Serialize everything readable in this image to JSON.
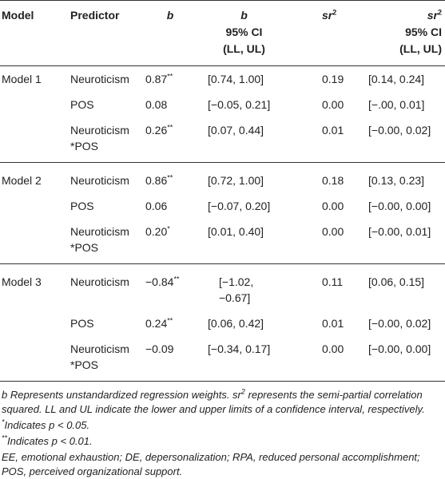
{
  "header": {
    "model": "Model",
    "predictor": "Predictor",
    "b": "b",
    "ci": "95% CI",
    "ci_bounds": "(LL, UL)",
    "sr": "sr",
    "sr_sup": "2"
  },
  "rows": [
    {
      "model": "Model 1",
      "predictor": [
        "Neuroticism"
      ],
      "b": "0.87",
      "b_sig": "**",
      "b_ci": [
        "[0.74, 1.00]"
      ],
      "sr2": "0.19",
      "sr2_ci": "[0.14, 0.24]"
    },
    {
      "predictor": [
        "POS"
      ],
      "b": "0.08",
      "b_ci": [
        "[−0.05, 0.21]"
      ],
      "sr2": "0.00",
      "sr2_ci": "[−.00, 0.01]"
    },
    {
      "predictor": [
        "Neuroticism",
        "*POS"
      ],
      "b": "0.26",
      "b_sig": "**",
      "b_ci": [
        "[0.07, 0.44]"
      ],
      "sr2": "0.01",
      "sr2_ci": "[−0.00, 0.02]"
    },
    {
      "model": "Model 2",
      "predictor": [
        "Neuroticism"
      ],
      "b": "0.86",
      "b_sig": "**",
      "b_ci": [
        "[0.72, 1.00]"
      ],
      "sr2": "0.18",
      "sr2_ci": "[0.13, 0.23]"
    },
    {
      "predictor": [
        "POS"
      ],
      "b": "0.06",
      "b_ci": [
        "[−0.07, 0.20]"
      ],
      "sr2": "0.00",
      "sr2_ci": "[−0.00, 0.00]"
    },
    {
      "predictor": [
        "Neuroticism",
        "*POS"
      ],
      "b": "0.20",
      "b_sig": "*",
      "b_ci": [
        "[0.01, 0.40]"
      ],
      "sr2": "0.00",
      "sr2_ci": "[−0.00, 0.01]"
    },
    {
      "model": "Model 3",
      "predictor": [
        "Neuroticism"
      ],
      "b": "−0.84",
      "b_sig": "**",
      "b_ci": [
        "[−1.02,",
        "−0.67]"
      ],
      "sr2": "0.11",
      "sr2_ci": "[0.06, 0.15]"
    },
    {
      "predictor": [
        "POS"
      ],
      "b": "0.24",
      "b_sig": "**",
      "b_ci": [
        "[0.06, 0.42]"
      ],
      "sr2": "0.01",
      "sr2_ci": "[−0.00, 0.02]"
    },
    {
      "predictor": [
        "Neuroticism",
        "*POS"
      ],
      "b": "−0.09",
      "b_ci": [
        "[−0.34, 0.17]"
      ],
      "sr2": "0.00",
      "sr2_ci": "[−0.00, 0.00]"
    }
  ],
  "notes": [
    [
      "b Represents unstandardized regression weights. sr",
      "2",
      " represents the semi-partial correlation squared. LL and UL indicate the lower and upper limits of a confidence interval, respectively."
    ],
    [
      "*",
      "Indicates p < 0.05."
    ],
    [
      "**",
      "Indicates p < 0.01."
    ],
    [
      "EE, emotional exhaustion; DE, depersonalization; RPA, reduced personal accomplishment; POS, perceived organizational support."
    ]
  ]
}
